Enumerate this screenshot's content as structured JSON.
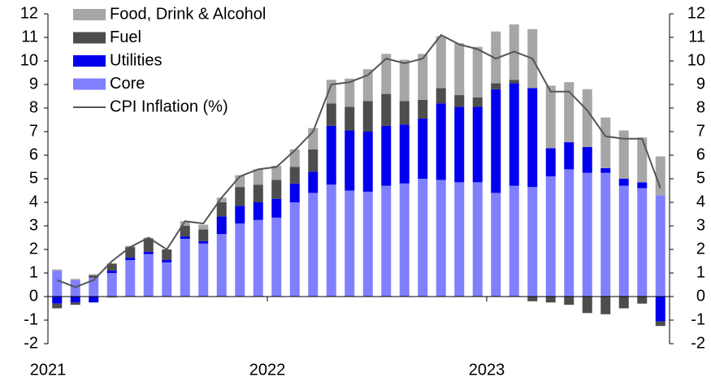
{
  "chart_data": {
    "type": "bar",
    "stacked": true,
    "categories": [
      "2021",
      null,
      null,
      null,
      null,
      null,
      null,
      null,
      null,
      null,
      null,
      null,
      "2022",
      null,
      null,
      null,
      null,
      null,
      null,
      null,
      null,
      null,
      null,
      null,
      "2023",
      null,
      null,
      null,
      null,
      null,
      null,
      null,
      null,
      null
    ],
    "series": [
      {
        "name": "Food, Drink & Alcohol",
        "color": "#a6a6a6",
        "values": [
          0.05,
          0.05,
          0.05,
          -0.05,
          0.05,
          0.05,
          0,
          0.2,
          0.2,
          0.2,
          0.5,
          0.65,
          0.6,
          0.75,
          0.9,
          1.0,
          1.2,
          1.35,
          1.7,
          1.75,
          1.95,
          2.2,
          2.2,
          2.15,
          2.2,
          2.35,
          2.5,
          2.65,
          2.55,
          2.45,
          2.15,
          2.05,
          1.9,
          1.65
        ]
      },
      {
        "name": "Fuel",
        "color": "#4d4d4d",
        "values": [
          -0.2,
          -0.1,
          0.1,
          0.3,
          0.45,
          0.55,
          0.45,
          0.45,
          0.5,
          0.6,
          0.8,
          0.75,
          0.8,
          0.7,
          0.95,
          0.95,
          1.0,
          1.3,
          1.35,
          1.0,
          0.8,
          0.65,
          0.5,
          0.4,
          0.25,
          0.15,
          -0.2,
          -0.25,
          -0.35,
          -0.7,
          -0.75,
          -0.5,
          -0.3,
          -0.2
        ]
      },
      {
        "name": "Utilities",
        "color": "#0000ee",
        "values": [
          -0.3,
          -0.25,
          -0.25,
          0.1,
          0.1,
          0.1,
          0.1,
          0.1,
          0.1,
          0.75,
          0.75,
          0.75,
          0.8,
          0.8,
          0.9,
          2.5,
          2.55,
          2.55,
          2.55,
          2.5,
          2.55,
          3.25,
          3.2,
          3.2,
          4.4,
          4.35,
          4.2,
          1.2,
          1.15,
          1.1,
          0.2,
          0.3,
          0.25,
          -1.05
        ]
      },
      {
        "name": "Core",
        "color": "#8080ff",
        "values": [
          1.1,
          0.7,
          0.8,
          1.0,
          1.55,
          1.8,
          1.45,
          2.45,
          2.25,
          2.65,
          3.1,
          3.25,
          3.35,
          4.0,
          4.4,
          4.75,
          4.5,
          4.45,
          4.7,
          4.8,
          5.0,
          4.95,
          4.85,
          4.85,
          4.4,
          4.7,
          4.65,
          5.1,
          5.4,
          5.25,
          5.25,
          4.7,
          4.6,
          4.3
        ]
      },
      {
        "name": "CPI Inflation (%)",
        "type": "line",
        "color": "#555555",
        "values": [
          0.7,
          0.4,
          0.7,
          1.5,
          2.1,
          2.5,
          2.0,
          3.2,
          3.1,
          4.2,
          5.1,
          5.4,
          5.5,
          6.2,
          7.0,
          9.0,
          9.1,
          9.4,
          10.1,
          9.9,
          10.1,
          11.1,
          10.7,
          10.5,
          10.1,
          10.4,
          10.1,
          8.7,
          8.7,
          7.9,
          6.8,
          6.7,
          6.7,
          4.6
        ]
      }
    ],
    "ylim": [
      -2,
      12
    ],
    "yticks": [
      -2,
      -1,
      0,
      1,
      2,
      3,
      4,
      5,
      6,
      7,
      8,
      9,
      10,
      11,
      12
    ],
    "y2lim": [
      -2,
      12
    ],
    "y2ticks": [
      -2,
      -1,
      0,
      1,
      2,
      3,
      4,
      5,
      6,
      7,
      8,
      9,
      10,
      11,
      12
    ],
    "legend": "top-left",
    "grid": false
  }
}
